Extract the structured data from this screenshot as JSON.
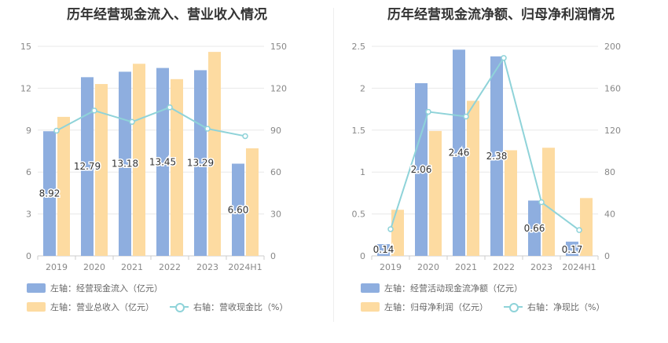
{
  "chart_data": [
    {
      "type": "bar",
      "title": "历年经营现金流入、营业收入情况",
      "categories": [
        "2019",
        "2020",
        "2021",
        "2022",
        "2023",
        "2024H1"
      ],
      "left_axis": {
        "ylim": [
          0,
          15
        ],
        "ticks": [
          "0",
          "3",
          "6",
          "9",
          "12",
          "15"
        ]
      },
      "right_axis": {
        "ylim": [
          0,
          150
        ],
        "ticks": [
          "0",
          "30",
          "60",
          "90",
          "120",
          "150"
        ]
      },
      "series": [
        {
          "name": "左轴：经营现金流入（亿元）",
          "kind": "bar",
          "axis": "left",
          "color": "#8eaedf",
          "values": [
            8.92,
            12.79,
            13.18,
            13.45,
            13.29,
            6.6
          ],
          "labels": [
            "8.92",
            "12.79",
            "13.18",
            "13.45",
            "13.29",
            "6.60"
          ]
        },
        {
          "name": "左轴：营业总收入（亿元）",
          "kind": "bar",
          "axis": "left",
          "color": "#fddba1",
          "values": [
            9.95,
            12.3,
            13.75,
            12.65,
            14.6,
            7.7
          ]
        },
        {
          "name": "右轴：营收现金比（%）",
          "kind": "line",
          "axis": "right",
          "color": "#8fd3d9",
          "values": [
            89.6,
            104.0,
            95.9,
            106.3,
            91.0,
            85.7
          ]
        }
      ],
      "legend_rows": [
        [
          0
        ],
        [
          1,
          2
        ]
      ],
      "grid": true
    },
    {
      "type": "bar",
      "title": "历年经营现金流净额、归母净利润情况",
      "categories": [
        "2019",
        "2020",
        "2021",
        "2022",
        "2023",
        "2024H1"
      ],
      "left_axis": {
        "ylim": [
          0,
          2.5
        ],
        "ticks": [
          "0",
          "0.5",
          "1",
          "1.5",
          "2",
          "2.5"
        ]
      },
      "right_axis": {
        "ylim": [
          0,
          200
        ],
        "ticks": [
          "0",
          "40",
          "80",
          "120",
          "160",
          "200"
        ]
      },
      "series": [
        {
          "name": "左轴：经营活动现金流净额（亿元）",
          "kind": "bar",
          "axis": "left",
          "color": "#8eaedf",
          "values": [
            0.14,
            2.06,
            2.46,
            2.38,
            0.66,
            0.17
          ],
          "labels": [
            "0.14",
            "2.06",
            "2.46",
            "2.38",
            "0.66",
            "0.17"
          ]
        },
        {
          "name": "左轴：归母净利润（亿元）",
          "kind": "bar",
          "axis": "left",
          "color": "#fddba1",
          "values": [
            0.55,
            1.49,
            1.85,
            1.26,
            1.29,
            0.69
          ]
        },
        {
          "name": "右轴：净现比（%）",
          "kind": "line",
          "axis": "right",
          "color": "#8fd3d9",
          "values": [
            25.5,
            137.5,
            133.0,
            188.9,
            51.2,
            24.6
          ]
        }
      ],
      "legend_rows": [
        [
          0
        ],
        [
          1,
          2
        ]
      ],
      "grid": true
    }
  ]
}
